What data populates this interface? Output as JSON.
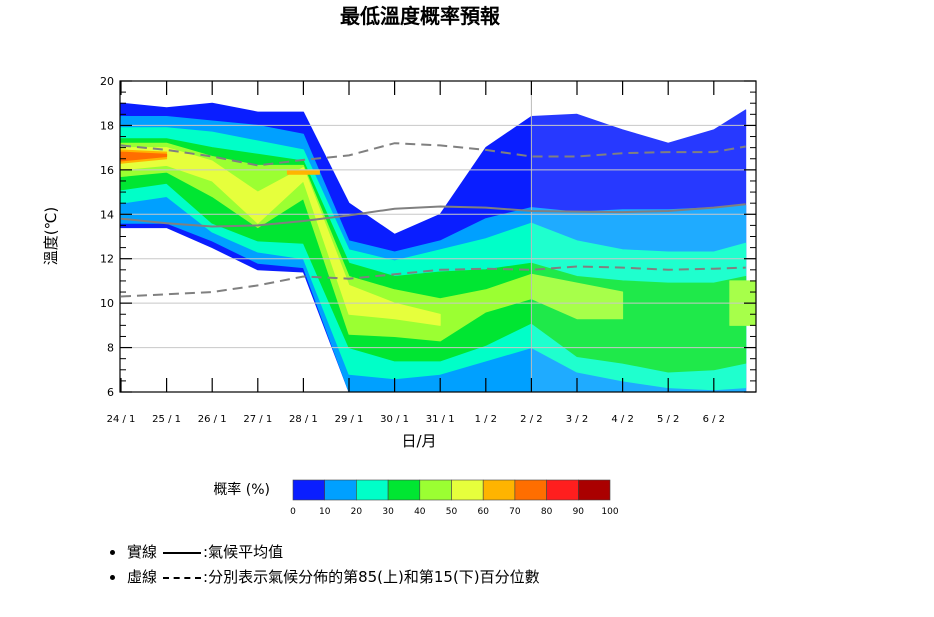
{
  "chart_data": {
    "type": "heatmap",
    "title": "最低溫度概率預報",
    "xlabel": "日/月",
    "ylabel": "溫度(℃)",
    "ylim": [
      6,
      20
    ],
    "y_ticks": [
      6,
      8,
      10,
      12,
      14,
      16,
      18,
      20
    ],
    "x_tick_labels": [
      "24 / 1",
      "25 / 1",
      "26 / 1",
      "27 / 1",
      "28 / 1",
      "29 / 1",
      "30 / 1",
      "31 / 1",
      "1 / 2",
      "2 / 2",
      "3 / 2",
      "4 / 2",
      "5 / 2",
      "6 / 2"
    ],
    "grid": true,
    "colorbar": {
      "label": "概率 (%)",
      "ticks": [
        "0",
        "10",
        "20",
        "30",
        "40",
        "50",
        "60",
        "70",
        "80",
        "90",
        "100"
      ],
      "colors": [
        "#0a1eff",
        "#00a0ff",
        "#00ffc8",
        "#00e632",
        "#9bff32",
        "#e6ff3c",
        "#ffb400",
        "#ff6e00",
        "#ff1e1e",
        "#aa0000"
      ]
    },
    "probability_bands": {
      "x_days": [
        0,
        1,
        2,
        3,
        4,
        5,
        6,
        7,
        8,
        9,
        10,
        11,
        12,
        13,
        13.7
      ],
      "bands": [
        {
          "min_percent": 0,
          "lower": [
            13.4,
            13.4,
            12.5,
            11.5,
            11.4,
            6.0,
            6.0,
            6.0,
            6.0,
            6.0,
            6.0,
            6.0,
            6.0,
            6.0,
            6.0
          ],
          "upper": [
            19.0,
            18.8,
            19.0,
            18.6,
            18.6,
            14.5,
            13.1,
            14.0,
            17.0,
            18.4,
            18.5,
            17.8,
            17.2,
            17.8,
            18.7
          ]
        },
        {
          "min_percent": 10,
          "lower": [
            13.6,
            13.6,
            12.8,
            11.8,
            11.6,
            6.0,
            6.0,
            6.0,
            6.0,
            6.0,
            6.0,
            6.0,
            6.0,
            6.0,
            6.0
          ],
          "upper": [
            18.4,
            18.4,
            18.2,
            18.0,
            17.6,
            12.8,
            12.3,
            12.8,
            13.8,
            14.3,
            14.1,
            14.2,
            14.2,
            14.3,
            14.4
          ]
        },
        {
          "min_percent": 20,
          "lower": [
            14.5,
            14.8,
            13.2,
            12.3,
            12.0,
            6.8,
            6.6,
            6.8,
            7.4,
            8.0,
            6.9,
            6.5,
            6.2,
            6.1,
            6.2
          ],
          "upper": [
            17.9,
            17.9,
            17.7,
            17.3,
            16.9,
            12.4,
            11.9,
            12.4,
            12.9,
            13.6,
            12.8,
            12.4,
            12.3,
            12.3,
            12.7
          ]
        },
        {
          "min_percent": 30,
          "lower": [
            15.1,
            15.4,
            13.6,
            12.8,
            12.7,
            8.0,
            7.4,
            7.4,
            8.1,
            9.1,
            7.6,
            7.3,
            6.9,
            7.0,
            7.3
          ],
          "upper": [
            17.4,
            17.4,
            17.0,
            16.7,
            16.4,
            11.8,
            11.2,
            11.4,
            11.5,
            11.8,
            11.2,
            11.0,
            10.9,
            10.9,
            11.2
          ]
        },
        {
          "min_percent": 40,
          "lower": [
            15.7,
            15.9,
            14.8,
            13.4,
            14.7,
            8.6,
            8.5,
            8.3,
            9.6,
            10.2,
            9.3,
            9.3,
            0,
            0,
            9.0
          ],
          "upper": [
            17.2,
            17.2,
            16.6,
            16.2,
            16.2,
            11.2,
            10.6,
            10.2,
            10.6,
            11.3,
            10.9,
            10.5,
            0,
            0,
            11.0
          ]
        },
        {
          "min_percent": 50,
          "lower": [
            16.0,
            16.2,
            15.5,
            13.6,
            15.5,
            9.5,
            9.3,
            9.0,
            0,
            0,
            0,
            0,
            0,
            0,
            0
          ],
          "upper": [
            17.0,
            17.0,
            16.4,
            15.0,
            16.1,
            10.8,
            10.0,
            9.5,
            0,
            0,
            0,
            0,
            0,
            0,
            0
          ]
        },
        {
          "min_percent": 60,
          "lower": [
            16.3,
            16.5,
            0,
            0,
            15.8,
            0,
            0,
            0,
            0,
            0,
            0,
            0,
            0,
            0,
            0
          ],
          "upper": [
            16.9,
            16.8,
            0,
            0,
            16.0,
            0,
            0,
            0,
            0,
            0,
            0,
            0,
            0,
            0,
            0
          ]
        },
        {
          "min_percent": 70,
          "lower": [
            16.4,
            16.6,
            0,
            0,
            0,
            0,
            0,
            0,
            0,
            0,
            0,
            0,
            0,
            0,
            0
          ],
          "upper": [
            16.8,
            16.7,
            0,
            0,
            0,
            0,
            0,
            0,
            0,
            0,
            0,
            0,
            0,
            0,
            0
          ]
        }
      ]
    },
    "series": [
      {
        "name": "氣候平均值",
        "style": "solid",
        "color": "#808080",
        "x": [
          0,
          1,
          2,
          3,
          4,
          5,
          6,
          7,
          8,
          9,
          10,
          11,
          12,
          13,
          13.7
        ],
        "values": [
          13.8,
          13.6,
          13.45,
          13.5,
          13.7,
          13.95,
          14.25,
          14.35,
          14.3,
          14.15,
          14.12,
          14.1,
          14.15,
          14.3,
          14.45
        ]
      },
      {
        "name": "第85百分位數",
        "style": "dashed",
        "color": "#808080",
        "x": [
          0,
          1,
          2,
          3,
          4,
          5,
          6,
          7,
          8,
          9,
          10,
          11,
          12,
          13,
          13.7
        ],
        "values": [
          17.1,
          16.9,
          16.6,
          16.2,
          16.45,
          16.65,
          17.2,
          17.1,
          16.9,
          16.6,
          16.6,
          16.75,
          16.8,
          16.8,
          17.05
        ]
      },
      {
        "name": "第15百分位數",
        "style": "dashed",
        "color": "#808080",
        "x": [
          0,
          1,
          2,
          3,
          4,
          5,
          6,
          7,
          8,
          9,
          10,
          11,
          12,
          13,
          13.7
        ],
        "values": [
          10.3,
          10.4,
          10.5,
          10.8,
          11.2,
          11.1,
          11.3,
          11.5,
          11.55,
          11.5,
          11.65,
          11.6,
          11.5,
          11.55,
          11.6
        ]
      }
    ]
  },
  "legend": {
    "solid_label": "實線",
    "solid_desc": ":氣候平均值",
    "dashed_label": "虛線",
    "dashed_desc": ":分別表示氣候分佈的第85(上)和第15(下)百分位數"
  }
}
